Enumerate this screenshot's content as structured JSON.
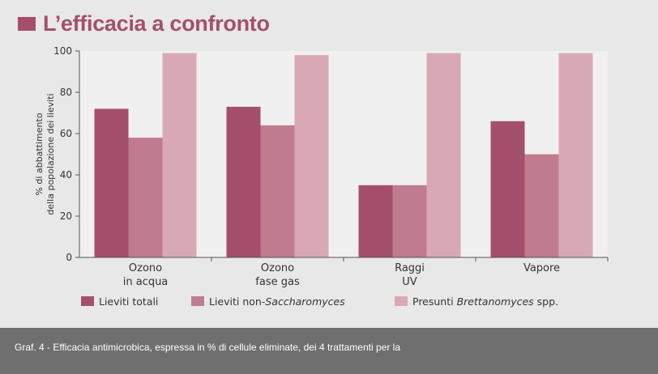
{
  "title": "L’efficacia a confronto",
  "caption": "Graf. 4 - Efficacia antimicrobica, espressa in % di cellule eliminate, dei 4 trattamenti per la",
  "colors": {
    "title": "#a44f6b",
    "series": [
      "#a44f6b",
      "#c07c8f",
      "#d8a9b5"
    ],
    "caption_bg": "#6f6f6f"
  },
  "chart_data": {
    "type": "bar",
    "categories": [
      [
        "Ozono",
        "in acqua"
      ],
      [
        "Ozono",
        "fase gas"
      ],
      [
        "Raggi",
        "UV"
      ],
      [
        "Vapore"
      ]
    ],
    "series": [
      {
        "name": "Lieviti totali",
        "values": [
          72,
          73,
          35,
          66
        ]
      },
      {
        "name": "Lieviti non-Saccharomyces",
        "values": [
          58,
          64,
          35,
          50
        ]
      },
      {
        "name": "Presunti Brettanomyces spp.",
        "values": [
          99,
          98,
          99,
          99
        ]
      }
    ],
    "legend": [
      {
        "parts": [
          {
            "text": "Lieviti totali",
            "italic": false
          }
        ]
      },
      {
        "parts": [
          {
            "text": "Lieviti non-",
            "italic": false
          },
          {
            "text": "Saccharomyces",
            "italic": true
          }
        ]
      },
      {
        "parts": [
          {
            "text": "Presunti ",
            "italic": false
          },
          {
            "text": "Brettanomyces",
            "italic": true
          },
          {
            "text": " spp.",
            "italic": false
          }
        ]
      }
    ],
    "ylabel": [
      "% di abbattimento",
      "della popolazione dei lieviti"
    ],
    "yticks": [
      0,
      20,
      40,
      60,
      80,
      100
    ],
    "ylim": [
      0,
      100
    ],
    "grid": false,
    "legend_position": "bottom"
  }
}
